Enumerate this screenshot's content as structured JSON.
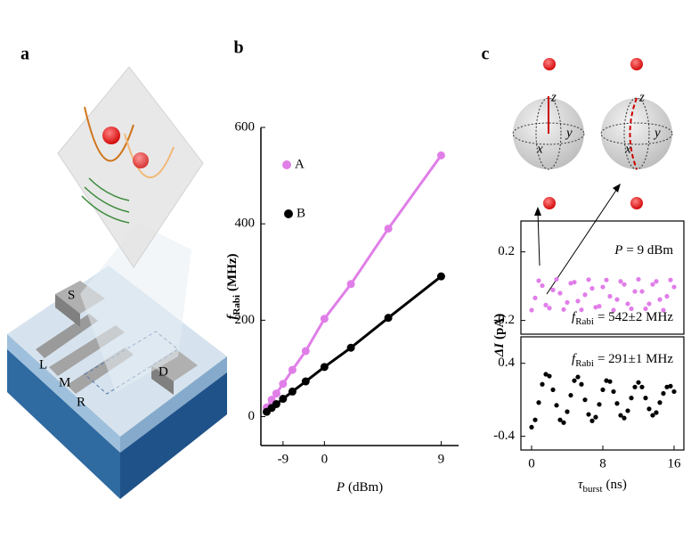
{
  "panel_labels": [
    "a",
    "b",
    "c"
  ],
  "device_labels": [
    "S",
    "L",
    "M",
    "R",
    "D"
  ],
  "bloch_axis_labels": [
    "z",
    "y",
    "x"
  ],
  "panel_c_ylabel": {
    "symbol": "ΔI",
    "unit": "(pA)"
  },
  "chart_data": [
    {
      "type": "scatter",
      "xlabel": {
        "symbol": "P",
        "unit": "(dBm)"
      },
      "ylabel": {
        "symbol": "f",
        "subscript": "Rabi",
        "unit": "(MHz)"
      },
      "xscale": "amplitude",
      "xlim": [
        -40,
        9.8
      ],
      "xticks": [
        -9,
        0,
        9
      ],
      "ylim": [
        -60,
        600
      ],
      "yticks": [
        0,
        200,
        400,
        600
      ],
      "fit_line": true,
      "x": [
        -20,
        -15,
        -12,
        -9,
        -6,
        -3,
        0,
        3,
        6,
        9
      ],
      "series": [
        {
          "name": "A",
          "color": "#e07ee8",
          "values": [
            19,
            35,
            48,
            68,
            97,
            136,
            203,
            275,
            390,
            542
          ]
        },
        {
          "name": "B",
          "color": "#000000",
          "values": [
            10,
            18,
            26,
            37,
            52,
            73,
            103,
            143,
            205,
            291
          ]
        }
      ]
    },
    {
      "type": "scatter",
      "xlim": [
        -1.2,
        17.1
      ],
      "ylim": [
        -0.28,
        0.38
      ],
      "yticks": [
        -0.2,
        0.2
      ],
      "color": "#e07ee8",
      "annotations": [
        {
          "symbol": "P",
          "text": "= 9 dBm"
        },
        {
          "symbol": "f",
          "subscript": "Rabi",
          "text": "= 542±2 MHz"
        }
      ],
      "x": [
        0,
        0.4,
        0.8,
        1.2,
        1.6,
        2,
        2.4,
        2.8,
        3.2,
        3.6,
        4,
        4.4,
        4.8,
        5.2,
        5.6,
        6,
        6.4,
        6.8,
        7.2,
        7.6,
        8,
        8.4,
        8.8,
        9.2,
        9.6,
        10,
        10.4,
        10.8,
        11.2,
        11.6,
        12,
        12.4,
        12.8,
        13.2,
        13.6,
        14,
        14.4,
        14.8,
        15.2,
        15.6,
        16
      ],
      "values": [
        -0.14,
        -0.069,
        0.032,
        0.003,
        -0.11,
        -0.128,
        -0.022,
        0.04,
        -0.041,
        -0.136,
        -0.095,
        0.017,
        0.023,
        -0.087,
        -0.138,
        -0.05,
        0.038,
        -0.013,
        -0.123,
        -0.117,
        -0.005,
        0.036,
        -0.059,
        -0.14,
        -0.078,
        0.028,
        0.01,
        -0.103,
        -0.132,
        -0.031,
        0.04,
        -0.031,
        -0.132,
        -0.103,
        0.01,
        0.028,
        -0.078,
        -0.14,
        -0.059,
        0.036,
        -0.005
      ]
    },
    {
      "type": "scatter",
      "xlabel": {
        "symbol": "τ",
        "subscript": "burst",
        "unit": "(ns)"
      },
      "xlim": [
        -1.2,
        17.1
      ],
      "xticks": [
        0,
        8,
        16
      ],
      "ylim": [
        -0.55,
        0.69
      ],
      "yticks": [
        -0.4,
        0.4
      ],
      "color": "#000000",
      "annotations": [
        {
          "symbol": "f",
          "subscript": "Rabi",
          "text": "= 291±1 MHz"
        }
      ],
      "x": [
        0,
        0.4,
        0.8,
        1.2,
        1.6,
        2,
        2.4,
        2.8,
        3.2,
        3.6,
        4,
        4.4,
        4.8,
        5.2,
        5.6,
        6,
        6.4,
        6.8,
        7.2,
        7.6,
        8,
        8.4,
        8.8,
        9.2,
        9.6,
        10,
        10.4,
        10.8,
        11.2,
        11.6,
        12,
        12.4,
        12.8,
        13.2,
        13.6,
        14,
        14.4,
        14.8,
        15.2,
        15.6,
        16
      ],
      "values": [
        -0.3,
        -0.22,
        -0.03,
        0.17,
        0.28,
        0.26,
        0.11,
        -0.06,
        -0.22,
        -0.25,
        -0.13,
        0.05,
        0.21,
        0.25,
        0.17,
        0,
        -0.16,
        -0.23,
        -0.19,
        -0.05,
        0.11,
        0.21,
        0.2,
        0.09,
        -0.04,
        -0.17,
        -0.2,
        -0.12,
        0.02,
        0.14,
        0.19,
        0.14,
        0.02,
        -0.1,
        -0.17,
        -0.14,
        -0.03,
        0.07,
        0.14,
        0.15,
        0.09
      ]
    }
  ]
}
